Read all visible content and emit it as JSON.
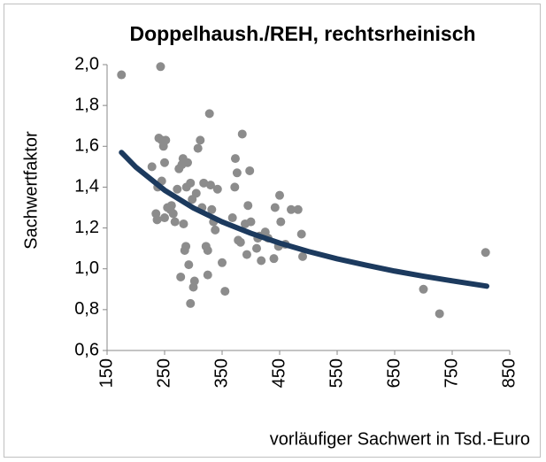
{
  "chart_data": {
    "type": "scatter",
    "title": "Doppelhaush./REH, rechtsrheinisch",
    "x_label": "vorläufiger Sachwert in Tsd.-Euro",
    "y_label": "Sachwertfaktor",
    "xlim": [
      150,
      850
    ],
    "xticks": [
      150,
      250,
      350,
      450,
      550,
      650,
      750,
      850
    ],
    "ylim": [
      0.6,
      2.0
    ],
    "yticks": [
      {
        "value": 0.6,
        "label": "0,6"
      },
      {
        "value": 0.8,
        "label": "0,8"
      },
      {
        "value": 1.0,
        "label": "1,0"
      },
      {
        "value": 1.2,
        "label": "1,2"
      },
      {
        "value": 1.4,
        "label": "1,4"
      },
      {
        "value": 1.6,
        "label": "1,6"
      },
      {
        "value": 1.8,
        "label": "1,8"
      },
      {
        "value": 2.0,
        "label": "2,0"
      }
    ],
    "grid": false,
    "series": [
      {
        "type": "scatter",
        "color": "#8c8c8c",
        "x": [
          175,
          243,
          228,
          235,
          237,
          240,
          245,
          248,
          250,
          252,
          238,
          245,
          250,
          255,
          260,
          262,
          265,
          268,
          272,
          275,
          278,
          280,
          282,
          283,
          285,
          287,
          288,
          290,
          292,
          295,
          295,
          298,
          300,
          302,
          305,
          308,
          312,
          315,
          318,
          322,
          325,
          325,
          328,
          330,
          332,
          335,
          338,
          342,
          350,
          355,
          368,
          372,
          373,
          376,
          378,
          382,
          385,
          390,
          393,
          395,
          398,
          400,
          410,
          412,
          415,
          418,
          425,
          430,
          440,
          442,
          448,
          450,
          452,
          460,
          470,
          482,
          488,
          490,
          700,
          728,
          808
        ],
        "y": [
          1.95,
          1.99,
          1.5,
          1.27,
          1.24,
          1.64,
          1.63,
          1.6,
          1.52,
          1.63,
          1.4,
          1.43,
          1.25,
          1.3,
          1.29,
          1.31,
          1.27,
          1.23,
          1.39,
          1.49,
          0.96,
          1.51,
          1.54,
          1.22,
          1.09,
          1.11,
          1.4,
          1.52,
          1.02,
          1.42,
          0.83,
          1.34,
          0.91,
          0.94,
          1.37,
          1.59,
          1.63,
          1.3,
          1.42,
          1.11,
          1.09,
          0.97,
          1.76,
          1.41,
          1.29,
          1.23,
          1.19,
          1.39,
          1.03,
          0.89,
          1.25,
          1.4,
          1.54,
          1.47,
          1.14,
          1.13,
          1.66,
          1.22,
          1.07,
          1.31,
          1.48,
          1.23,
          1.1,
          1.15,
          1.16,
          1.04,
          1.18,
          1.15,
          1.05,
          1.3,
          1.11,
          1.36,
          1.23,
          1.12,
          1.29,
          1.29,
          1.17,
          1.06,
          0.9,
          0.78,
          1.08
        ]
      },
      {
        "type": "line",
        "color": "#1c3a5e",
        "x": [
          175,
          200,
          250,
          300,
          350,
          400,
          450,
          500,
          550,
          600,
          650,
          700,
          750,
          810
        ],
        "y": [
          1.57,
          1.498,
          1.385,
          1.298,
          1.23,
          1.174,
          1.126,
          1.085,
          1.049,
          1.018,
          0.989,
          0.964,
          0.941,
          0.915
        ]
      }
    ]
  }
}
